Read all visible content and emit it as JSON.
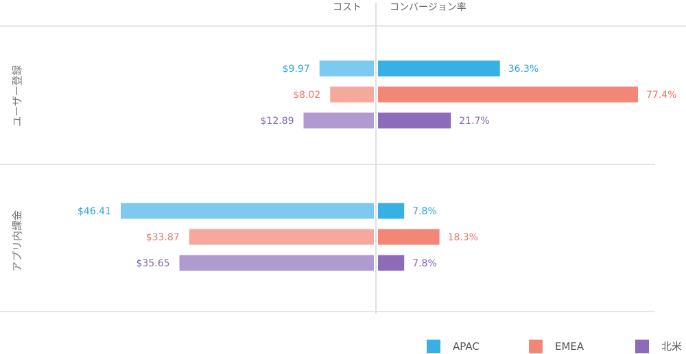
{
  "chart_data": {
    "type": "bar",
    "orientation": "horizontal-butterfly",
    "panels": [
      {
        "title": "コスト",
        "unit": "$",
        "direction": "left",
        "xlim": [
          0,
          47
        ]
      },
      {
        "title": "コンバージョン率",
        "unit": "%",
        "direction": "right",
        "xlim": [
          0,
          78
        ]
      }
    ],
    "categories": [
      "ユーザー登録",
      "アプリ内課金"
    ],
    "series": [
      {
        "name": "APAC",
        "cost": [
          9.97,
          46.41
        ],
        "conversion": [
          36.3,
          7.8
        ],
        "color": "#36b0e5",
        "light": "#7dc9ef",
        "label_color": "#2fa3de"
      },
      {
        "name": "EMEA",
        "cost": [
          8.02,
          33.87
        ],
        "conversion": [
          77.4,
          18.3
        ],
        "color": "#f28778",
        "light": "#f5a99d",
        "label_color": "#ef7562"
      },
      {
        "name": "北米",
        "cost": [
          12.89,
          35.65
        ],
        "conversion": [
          21.7,
          7.8
        ],
        "color": "#8c6bb8",
        "light": "#b09ad0",
        "label_color": "#8462b3"
      }
    ],
    "cost_labels": [
      [
        "$9.97",
        "$46.41"
      ],
      [
        "$8.02",
        "$33.87"
      ],
      [
        "$12.89",
        "$35.65"
      ]
    ],
    "conversion_labels": [
      [
        "36.3%",
        "7.8%"
      ],
      [
        "77.4%",
        "18.3%"
      ],
      [
        "21.7%",
        "7.8%"
      ]
    ],
    "legend": "bottom-right",
    "grid": false
  }
}
